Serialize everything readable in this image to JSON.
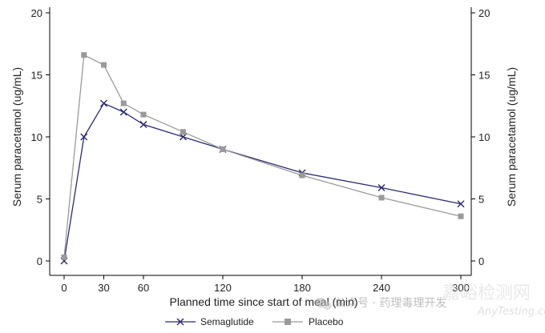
{
  "chart_data": {
    "type": "line",
    "title": "",
    "xlabel": "Planned time since start of meal (min)",
    "ylabel": "Serum paracetamol (ug/mL)",
    "ylabel_right": "Serum paracetamol (ug/mL)",
    "xlim": [
      0,
      300
    ],
    "ylim": [
      0,
      20
    ],
    "xticks": [
      0,
      30,
      60,
      120,
      180,
      240,
      300
    ],
    "yticks": [
      0,
      5,
      10,
      15,
      20
    ],
    "grid": false,
    "legend_position": "bottom",
    "series": [
      {
        "name": "Semaglutide",
        "marker": "x",
        "color": "#2e2a6e",
        "x": [
          0,
          15,
          30,
          45,
          60,
          90,
          120,
          180,
          240,
          300
        ],
        "y": [
          0.0,
          10.0,
          12.7,
          12.0,
          11.0,
          10.0,
          9.0,
          7.1,
          5.9,
          4.6
        ]
      },
      {
        "name": "Placebo",
        "marker": "square",
        "color": "#9a9a9a",
        "x": [
          0,
          15,
          30,
          45,
          60,
          90,
          120,
          180,
          240,
          300
        ],
        "y": [
          0.3,
          16.6,
          15.8,
          12.7,
          11.8,
          10.4,
          9.0,
          6.9,
          5.1,
          3.6
        ]
      }
    ]
  },
  "watermark": {
    "wechat_text": "公众号 · 药理毒理开发",
    "site_text": "AnyTesting.com",
    "site_cn": "嘉峪检测网",
    "logo_icon": "wechat-icon"
  }
}
